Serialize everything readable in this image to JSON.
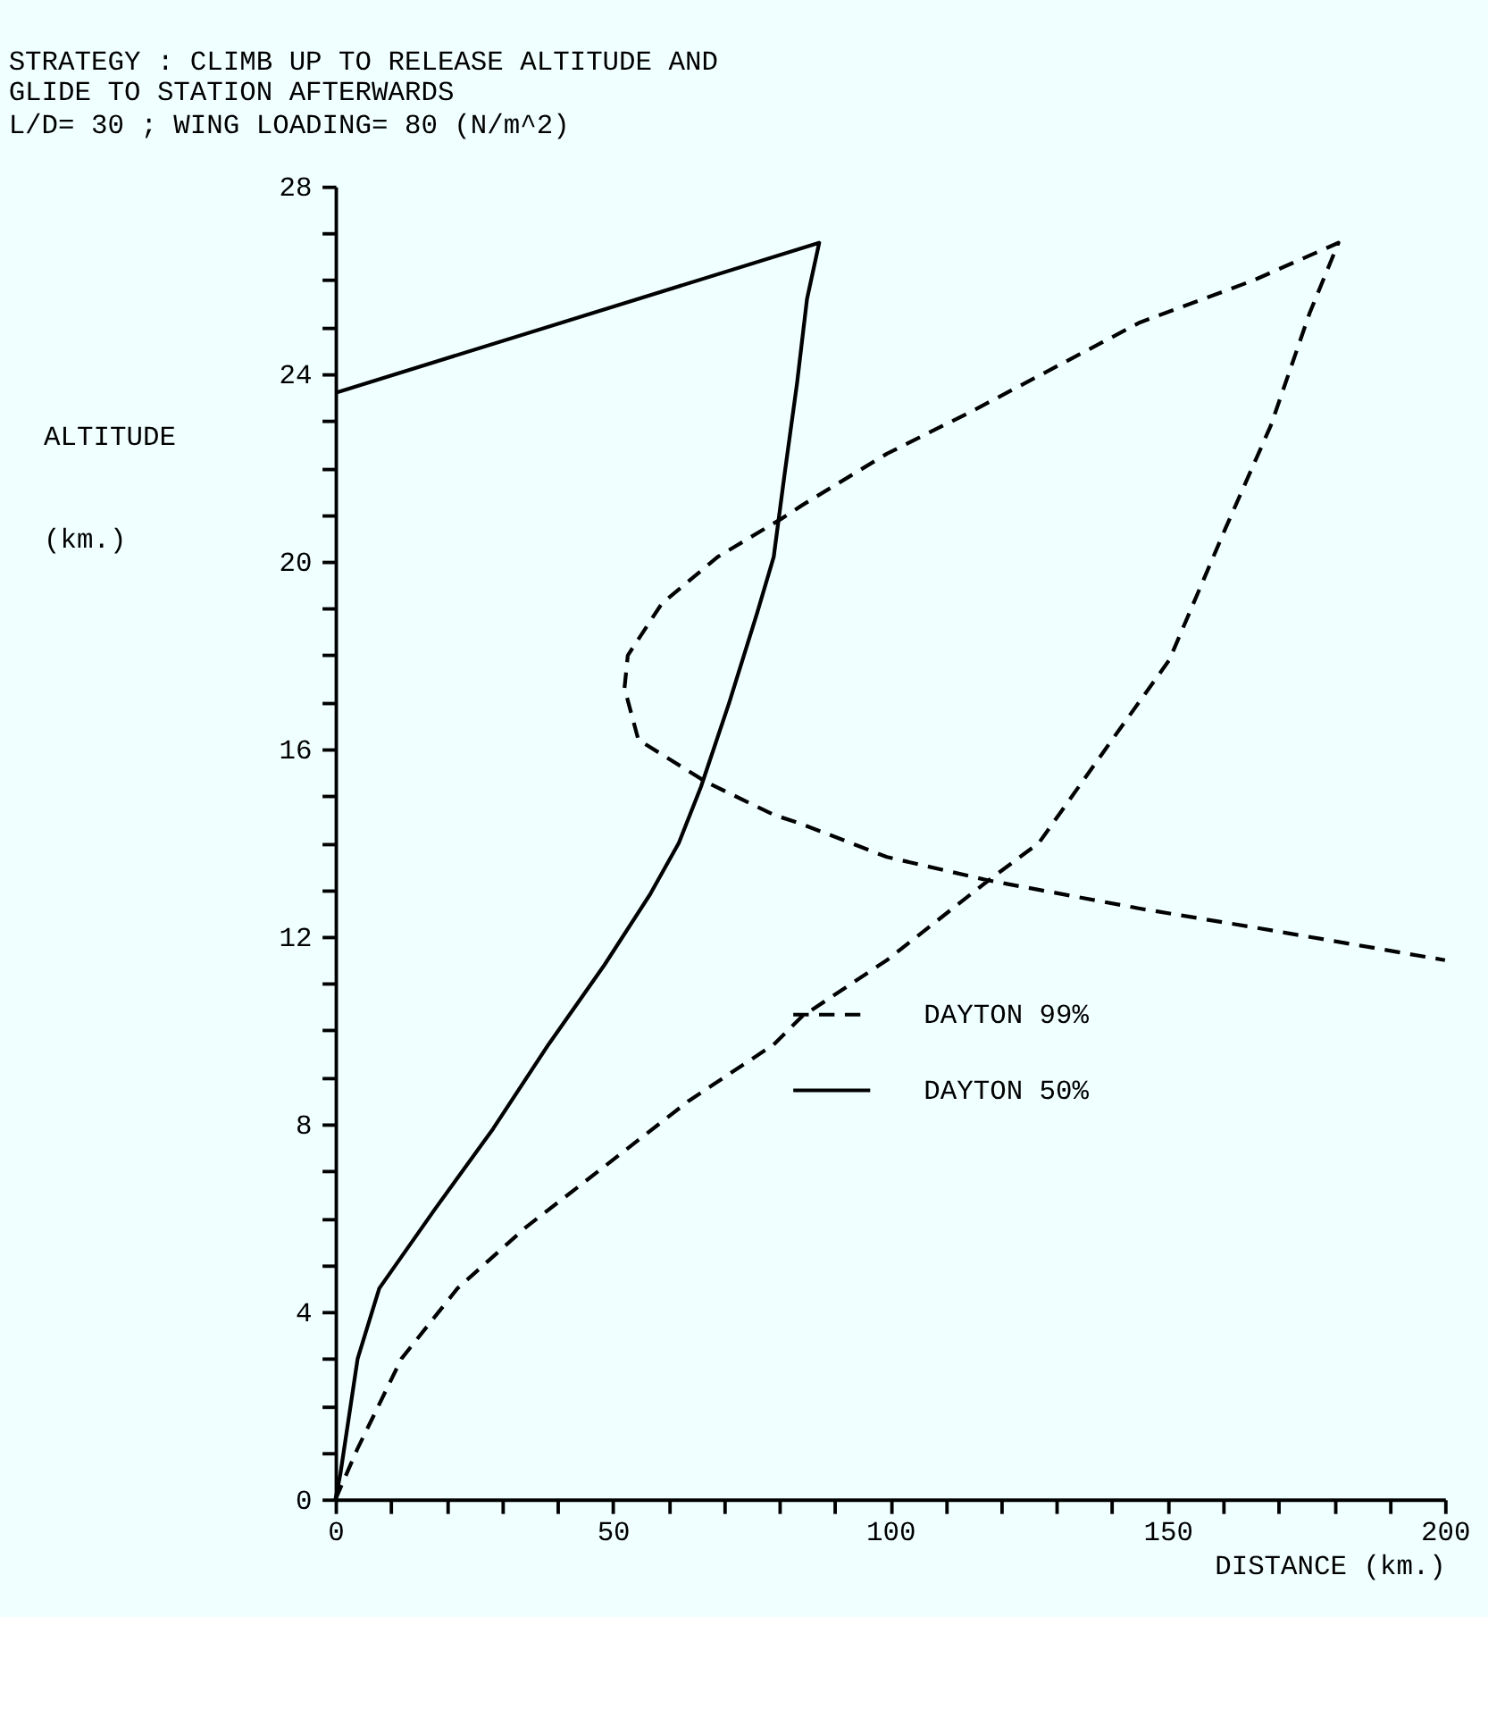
{
  "chart_data": {
    "type": "line",
    "title": [
      "STRATEGY : CLIMB UP TO RELEASE ALTITUDE AND",
      "GLIDE TO STATION AFTERWARDS"
    ],
    "subtitle": "L/D= 30 ; WING LOADING= 80 (N/m^2)",
    "xlabel": "DISTANCE (km.)",
    "ylabel": "ALTITUDE (km.)",
    "xlim": [
      0,
      200
    ],
    "ylim": [
      0,
      28
    ],
    "xticks": [
      0,
      {
        "value": 10,
        "label": null
      },
      {
        "value": 20,
        "label": null
      },
      {
        "value": 30,
        "label": null
      },
      {
        "value": 40,
        "label": null
      },
      50,
      {
        "value": 60,
        "label": null
      },
      {
        "value": 70,
        "label": null
      },
      {
        "value": 80,
        "label": null
      },
      {
        "value": 90,
        "label": null
      },
      100,
      {
        "value": 110,
        "label": null
      },
      {
        "value": 120,
        "label": null
      },
      {
        "value": 130,
        "label": null
      },
      {
        "value": 140,
        "label": null
      },
      150,
      {
        "value": 160,
        "label": null
      },
      {
        "value": 170,
        "label": null
      },
      {
        "value": 180,
        "label": null
      },
      {
        "value": 190,
        "label": null
      },
      200
    ],
    "yticks": [
      0,
      {
        "value": 1,
        "label": null
      },
      {
        "value": 2,
        "label": null
      },
      {
        "value": 3,
        "label": null
      },
      4,
      {
        "value": 5,
        "label": null
      },
      {
        "value": 6,
        "label": null
      },
      {
        "value": 7,
        "label": null
      },
      8,
      {
        "value": 9,
        "label": null
      },
      {
        "value": 10,
        "label": null
      },
      {
        "value": 11,
        "label": null
      },
      12,
      {
        "value": 13,
        "label": null
      },
      {
        "value": 14,
        "label": null
      },
      {
        "value": 15,
        "label": null
      },
      16,
      {
        "value": 17,
        "label": null
      },
      {
        "value": 18,
        "label": null
      },
      {
        "value": 19,
        "label": null
      },
      20,
      {
        "value": 21,
        "label": null
      },
      {
        "value": 22,
        "label": null
      },
      {
        "value": 23,
        "label": null
      },
      24,
      {
        "value": 25,
        "label": null
      },
      {
        "value": 26,
        "label": null
      },
      {
        "value": 27,
        "label": null
      },
      28
    ],
    "grid": false,
    "legend": "right",
    "marker": "none",
    "series": [
      {
        "name": "DAYTON 99%",
        "color": "#000000",
        "line_style": "dashed",
        "x": [
          0,
          3.9,
          11.9,
          22,
          34.3,
          48.5,
          63.7,
          79,
          84.1,
          99.4,
          117.7,
          126.8,
          140,
          150.3,
          160.4,
          168.6,
          175.6,
          180.8,
          165.5,
          145,
          114.6,
          99.4,
          84.1,
          80.2,
          68.9,
          58.8,
          52.7,
          52.1,
          54.6,
          66.8,
          79,
          84.1,
          99.4,
          117.7,
          145,
          165.5,
          200
        ],
        "values": [
          0,
          1.06,
          3.0,
          4.5,
          5.8,
          7.1,
          8.5,
          9.7,
          10.3,
          11.5,
          13.2,
          14.0,
          16.2,
          17.9,
          20.7,
          22.9,
          25.3,
          26.8,
          26.0,
          25.1,
          23.2,
          22.3,
          21.2,
          20.9,
          20.1,
          19.1,
          18.0,
          17.3,
          16.2,
          15.3,
          14.6,
          14.4,
          13.7,
          13.2,
          12.6,
          12.2,
          11.5
        ]
      },
      {
        "name": "DAYTON 50%",
        "color": "#000000",
        "line_style": "solid",
        "x": [
          0,
          0.9,
          4,
          7.9,
          18,
          28.4,
          38.4,
          48.5,
          56.7,
          61.9,
          65.9,
          71,
          76,
          79,
          81,
          83.2,
          85,
          87.2,
          0
        ],
        "values": [
          0,
          0.55,
          3.0,
          4.5,
          6.2,
          7.9,
          9.7,
          11.4,
          12.9,
          14.0,
          15.2,
          17.0,
          18.9,
          20.1,
          21.9,
          23.8,
          25.6,
          26.8,
          23.6
        ]
      }
    ]
  }
}
